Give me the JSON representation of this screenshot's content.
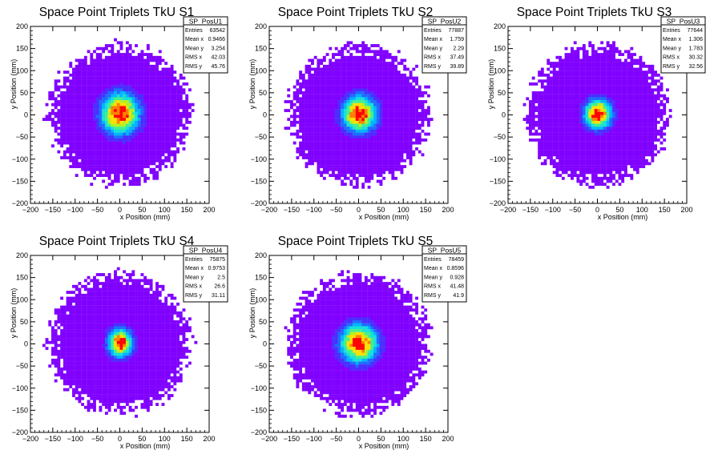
{
  "chart_data": [
    {
      "type": "heatmap",
      "title": "Space Point Triplets TkU S1",
      "xlabel": "x Position (mm)",
      "ylabel": "y Position (mm)",
      "xlim": [
        -200,
        200
      ],
      "ylim": [
        -200,
        200
      ],
      "xticks": [
        "−200",
        "−150",
        "−100",
        "−50",
        "0",
        "50",
        "100",
        "150",
        "200"
      ],
      "yticks": [
        "200",
        "150",
        "100",
        "50",
        "0",
        "−50",
        "−100",
        "−150",
        "−200"
      ],
      "stats": {
        "name": "SP_PosU1",
        "rows": [
          {
            "label": "Entries",
            "value": "63542"
          },
          {
            "label": "Mean x",
            "value": "0.9466"
          },
          {
            "label": "Mean y",
            "value": "3.254"
          },
          {
            "label": "RMS x",
            "value": "42.03"
          },
          {
            "label": "RMS y",
            "value": "45.76"
          }
        ]
      },
      "distribution": {
        "mean_x": 0.9466,
        "mean_y": 3.254,
        "rms_x": 42.03,
        "rms_y": 45.76,
        "extent_radius_mm": 160
      }
    },
    {
      "type": "heatmap",
      "title": "Space Point Triplets TkU S2",
      "xlabel": "x Position (mm)",
      "ylabel": "y Position (mm)",
      "xlim": [
        -200,
        200
      ],
      "ylim": [
        -200,
        200
      ],
      "xticks": [
        "−200",
        "−150",
        "−100",
        "−50",
        "0",
        "50",
        "100",
        "150",
        "200"
      ],
      "yticks": [
        "200",
        "150",
        "100",
        "50",
        "0",
        "−50",
        "−100",
        "−150",
        "−200"
      ],
      "stats": {
        "name": "SP_PosU2",
        "rows": [
          {
            "label": "Entries",
            "value": "77887"
          },
          {
            "label": "Mean x",
            "value": "1.759"
          },
          {
            "label": "Mean y",
            "value": "2.29"
          },
          {
            "label": "RMS x",
            "value": "37.49"
          },
          {
            "label": "RMS y",
            "value": "39.89"
          }
        ]
      },
      "distribution": {
        "mean_x": 1.759,
        "mean_y": 2.29,
        "rms_x": 37.49,
        "rms_y": 39.89,
        "extent_radius_mm": 160
      }
    },
    {
      "type": "heatmap",
      "title": "Space Point Triplets TkU S3",
      "xlabel": "x Position (mm)",
      "ylabel": "y Position (mm)",
      "xlim": [
        -200,
        200
      ],
      "ylim": [
        -200,
        200
      ],
      "xticks": [
        "−200",
        "−150",
        "−100",
        "−50",
        "0",
        "50",
        "100",
        "150",
        "200"
      ],
      "yticks": [
        "200",
        "150",
        "100",
        "50",
        "0",
        "−50",
        "−100",
        "−150",
        "−200"
      ],
      "stats": {
        "name": "SP_PosU3",
        "rows": [
          {
            "label": "Entries",
            "value": "77644"
          },
          {
            "label": "Mean x",
            "value": "1.306"
          },
          {
            "label": "Mean y",
            "value": "1.783"
          },
          {
            "label": "RMS x",
            "value": "30.32"
          },
          {
            "label": "RMS y",
            "value": "32.56"
          }
        ]
      },
      "distribution": {
        "mean_x": 1.306,
        "mean_y": 1.783,
        "rms_x": 30.32,
        "rms_y": 32.56,
        "extent_radius_mm": 160
      }
    },
    {
      "type": "heatmap",
      "title": "Space Point Triplets TkU S4",
      "xlabel": "x Position (mm)",
      "ylabel": "y Position (mm)",
      "xlim": [
        -200,
        200
      ],
      "ylim": [
        -200,
        200
      ],
      "xticks": [
        "−200",
        "−150",
        "−100",
        "−50",
        "0",
        "50",
        "100",
        "150",
        "200"
      ],
      "yticks": [
        "200",
        "150",
        "100",
        "50",
        "0",
        "−50",
        "−100",
        "−150",
        "−200"
      ],
      "stats": {
        "name": "SP_PosU4",
        "rows": [
          {
            "label": "Entries",
            "value": "75875"
          },
          {
            "label": "Mean x",
            "value": "0.9753"
          },
          {
            "label": "Mean y",
            "value": "2.5"
          },
          {
            "label": "RMS x",
            "value": "26.6"
          },
          {
            "label": "RMS y",
            "value": "31.11"
          }
        ]
      },
      "distribution": {
        "mean_x": 0.9753,
        "mean_y": 2.5,
        "rms_x": 26.6,
        "rms_y": 31.11,
        "extent_radius_mm": 160
      }
    },
    {
      "type": "heatmap",
      "title": "Space Point Triplets TkU S5",
      "xlabel": "x Position (mm)",
      "ylabel": "y Position (mm)",
      "xlim": [
        -200,
        200
      ],
      "ylim": [
        -200,
        200
      ],
      "xticks": [
        "−200",
        "−150",
        "−100",
        "−50",
        "0",
        "50",
        "100",
        "150",
        "200"
      ],
      "yticks": [
        "200",
        "150",
        "100",
        "50",
        "0",
        "−50",
        "−100",
        "−150",
        "−200"
      ],
      "stats": {
        "name": "SP_PosU5",
        "rows": [
          {
            "label": "Entries",
            "value": "78459"
          },
          {
            "label": "Mean x",
            "value": "0.8596"
          },
          {
            "label": "Mean y",
            "value": "0.928"
          },
          {
            "label": "RMS x",
            "value": "41.48"
          },
          {
            "label": "RMS y",
            "value": "41.9"
          }
        ]
      },
      "distribution": {
        "mean_x": 0.8596,
        "mean_y": 0.928,
        "rms_x": 41.48,
        "rms_y": 41.9,
        "extent_radius_mm": 160
      }
    }
  ],
  "palette": [
    "#8000ff",
    "#4a2dff",
    "#1e6cff",
    "#00b4ff",
    "#18e0d8",
    "#40f090",
    "#b4f020",
    "#ffe000",
    "#ff8000",
    "#ff0000"
  ],
  "frame_color": "#000000"
}
